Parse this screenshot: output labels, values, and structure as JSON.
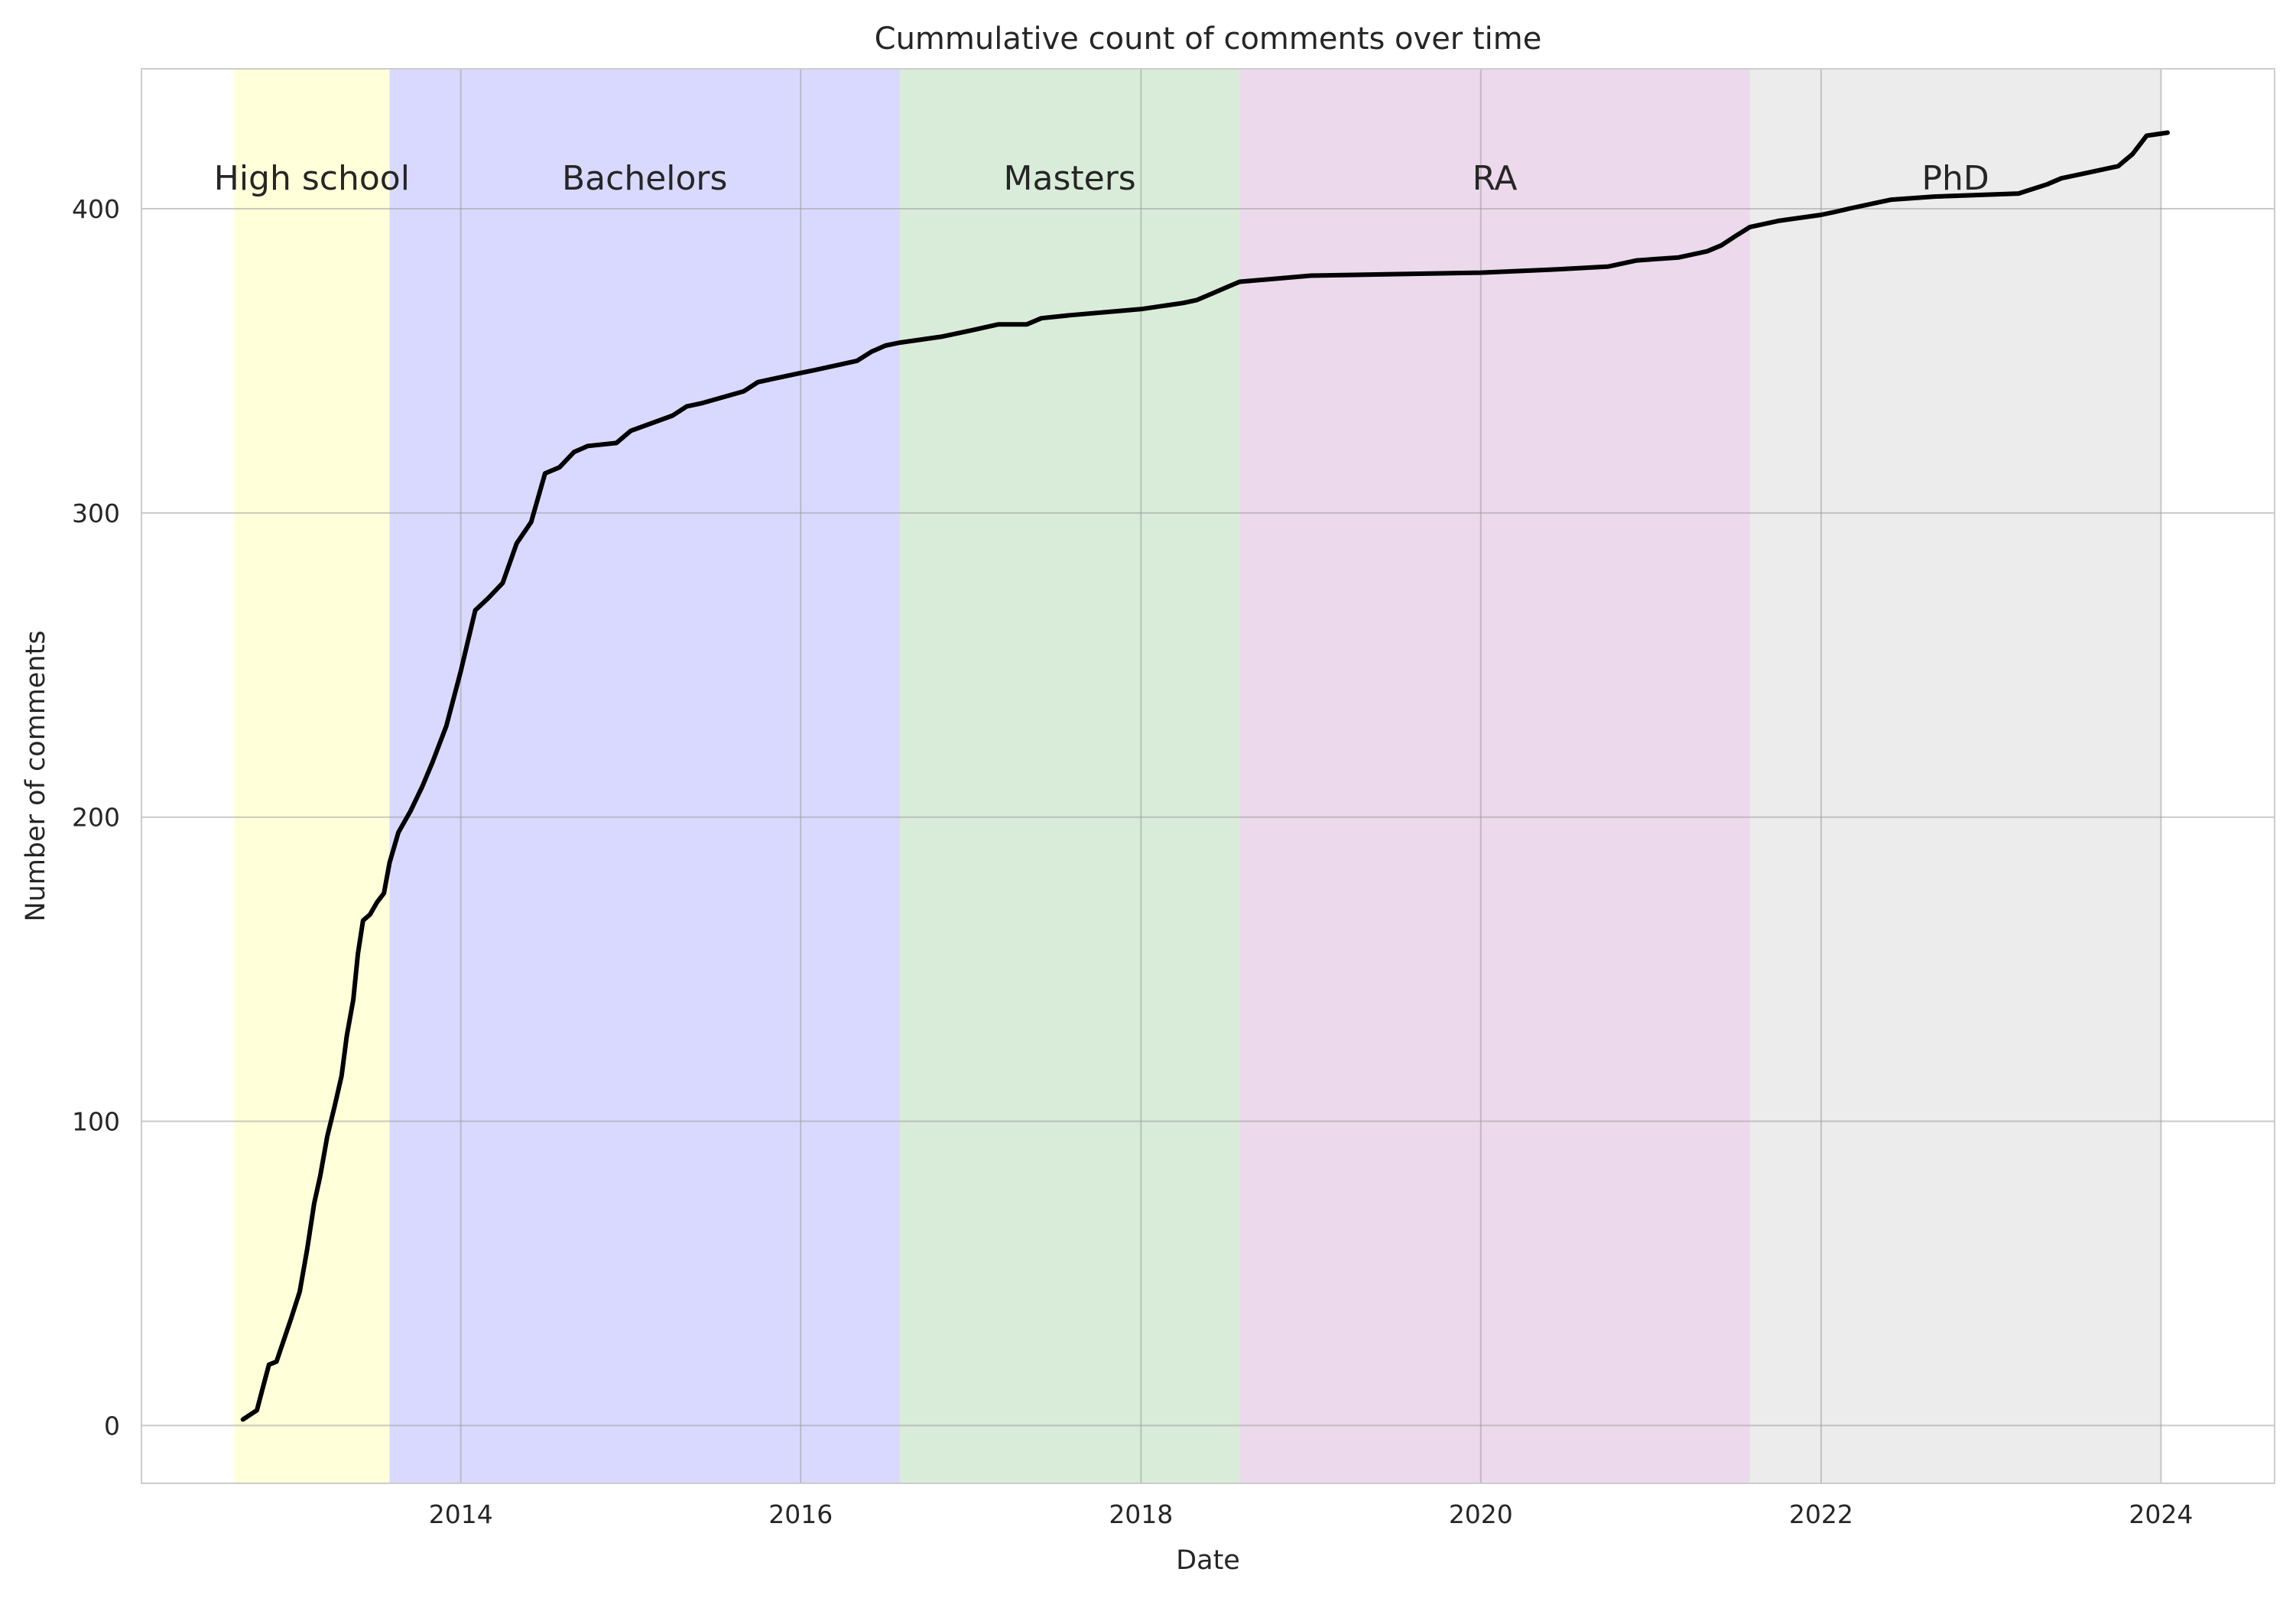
{
  "chart_data": {
    "type": "line",
    "title": "Cummulative count of comments over time",
    "xlabel": "Date",
    "ylabel": "Number of comments",
    "xlim": [
      "2012-02-15",
      "2024-09-01"
    ],
    "ylim": [
      -19,
      446
    ],
    "x_ticks": [
      "2014-01-01",
      "2016-01-01",
      "2018-01-01",
      "2020-01-01",
      "2022-01-01",
      "2024-01-01"
    ],
    "x_tick_labels": [
      "2014",
      "2016",
      "2018",
      "2020",
      "2022",
      "2024"
    ],
    "y_ticks": [
      0,
      100,
      200,
      300,
      400
    ],
    "y_tick_labels": [
      "0",
      "100",
      "200",
      "300",
      "400"
    ],
    "grid": true,
    "periods": [
      {
        "label": "High school",
        "start": "2012-09-01",
        "end": "2013-08-01",
        "color": "#ffffb3"
      },
      {
        "label": "Bachelors",
        "start": "2013-08-01",
        "end": "2016-08-01",
        "color": "#b3b3ff"
      },
      {
        "label": "Masters",
        "start": "2016-08-01",
        "end": "2018-08-01",
        "color": "#b3d9b3"
      },
      {
        "label": "RA",
        "start": "2018-08-01",
        "end": "2021-08-01",
        "color": "#d9b3d9"
      },
      {
        "label": "PhD",
        "start": "2021-08-01",
        "end": "2024-01-01",
        "color": "#d9d9d9"
      }
    ],
    "series": [
      {
        "color": "#000000",
        "x": [
          "2012-09-20",
          "2012-10-20",
          "2012-11-01",
          "2012-11-15",
          "2012-12-01",
          "2013-01-01",
          "2013-01-20",
          "2013-02-05",
          "2013-02-20",
          "2013-03-05",
          "2013-03-20",
          "2013-04-05",
          "2013-04-20",
          "2013-05-01",
          "2013-05-15",
          "2013-05-25",
          "2013-06-05",
          "2013-06-20",
          "2013-07-05",
          "2013-07-20",
          "2013-08-01",
          "2013-08-20",
          "2013-09-15",
          "2013-10-10",
          "2013-11-01",
          "2013-12-01",
          "2014-01-01",
          "2014-02-01",
          "2014-03-01",
          "2014-04-01",
          "2014-05-01",
          "2014-06-01",
          "2014-07-01",
          "2014-08-01",
          "2014-09-01",
          "2014-10-01",
          "2014-12-01",
          "2015-01-01",
          "2015-04-01",
          "2015-05-01",
          "2015-06-01",
          "2015-09-01",
          "2015-10-01",
          "2015-12-01",
          "2016-01-01",
          "2016-02-01",
          "2016-05-01",
          "2016-06-01",
          "2016-07-01",
          "2016-08-01",
          "2016-11-01",
          "2017-01-01",
          "2017-03-01",
          "2017-05-01",
          "2017-06-01",
          "2017-08-01",
          "2018-01-01",
          "2018-04-01",
          "2018-05-01",
          "2018-06-01",
          "2018-07-01",
          "2018-08-01",
          "2019-01-01",
          "2020-01-01",
          "2020-06-01",
          "2020-10-01",
          "2020-12-01",
          "2021-03-01",
          "2021-05-01",
          "2021-06-01",
          "2021-07-01",
          "2021-08-01",
          "2021-10-01",
          "2022-01-01",
          "2022-02-01",
          "2022-03-01",
          "2022-05-01",
          "2022-06-01",
          "2022-09-01",
          "2023-03-01",
          "2023-05-01",
          "2023-06-01",
          "2023-08-01",
          "2023-10-01",
          "2023-11-01",
          "2023-12-01",
          "2024-01-15"
        ],
        "y": [
          2,
          5,
          12,
          20,
          21,
          35,
          44,
          58,
          73,
          82,
          95,
          105,
          115,
          128,
          140,
          155,
          166,
          168,
          172,
          175,
          185,
          195,
          202,
          210,
          218,
          230,
          248,
          268,
          272,
          277,
          290,
          297,
          313,
          315,
          320,
          322,
          323,
          327,
          332,
          335,
          336,
          340,
          343,
          345,
          346,
          347,
          350,
          353,
          355,
          356,
          358,
          360,
          362,
          362,
          364,
          365,
          367,
          369,
          370,
          372,
          374,
          376,
          378,
          379,
          380,
          381,
          383,
          384,
          386,
          388,
          391,
          394,
          396,
          398,
          399,
          400,
          402,
          403,
          404,
          405,
          408,
          410,
          412,
          414,
          418,
          424,
          425
        ]
      }
    ]
  }
}
